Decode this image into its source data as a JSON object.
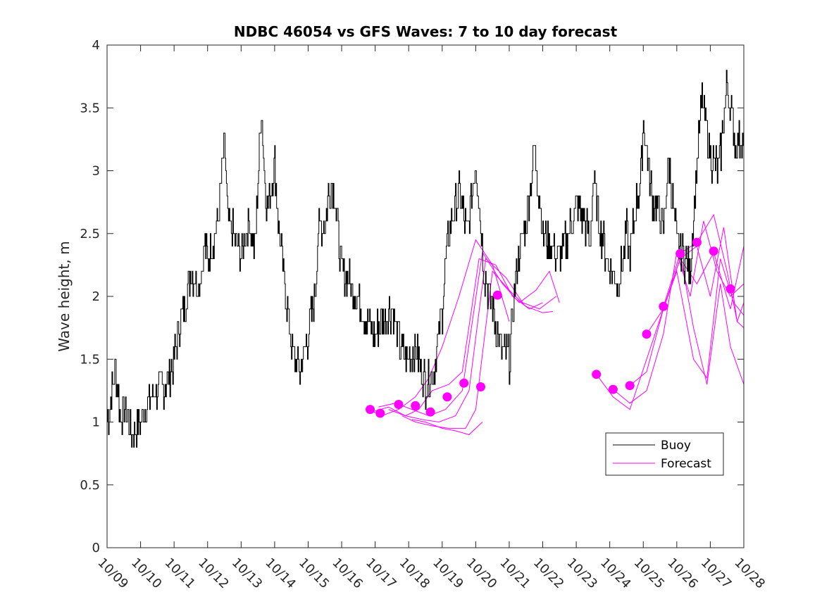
{
  "chart_data": {
    "type": "line",
    "title": "NDBC 46054 vs GFS Waves: 7 to 10 day forecast",
    "xlabel": "",
    "ylabel": "Wave height, m",
    "ylim": [
      0,
      4
    ],
    "xlim": [
      0,
      19
    ],
    "x_unit": "days since 10/09 00:00",
    "x_ticks": [
      "10/09",
      "10/10",
      "10/11",
      "10/12",
      "10/13",
      "10/14",
      "10/15",
      "10/16",
      "10/17",
      "10/18",
      "10/19",
      "10/20",
      "10/21",
      "10/22",
      "10/23",
      "10/24",
      "10/25",
      "10/26",
      "10/27",
      "10/28"
    ],
    "y_ticks": [
      "0",
      "0.5",
      "1",
      "1.5",
      "2",
      "2.5",
      "3",
      "3.5",
      "4"
    ],
    "legend": {
      "position": "bottom-right",
      "entries": [
        "Buoy",
        "Forecast"
      ]
    },
    "colors": {
      "buoy": "#000000",
      "forecast": "#ff00ff",
      "axis": "#262626"
    },
    "series": [
      {
        "name": "Buoy",
        "x": [
          0,
          0.25,
          0.4,
          0.55,
          0.75,
          1.0,
          1.25,
          1.5,
          1.75,
          2.0,
          2.1,
          2.3,
          2.5,
          2.75,
          2.9,
          3.0,
          3.1,
          3.3,
          3.5,
          3.6,
          3.75,
          3.9,
          4.0,
          4.1,
          4.25,
          4.4,
          4.6,
          4.75,
          4.9,
          5.0,
          5.1,
          5.3,
          5.5,
          5.75,
          5.9,
          6.0,
          6.2,
          6.3,
          6.5,
          6.6,
          6.75,
          7.0,
          7.25,
          7.5,
          7.75,
          8.0,
          8.25,
          8.5,
          8.75,
          9.0,
          9.2,
          9.4,
          9.5,
          9.75,
          10.0,
          10.1,
          10.25,
          10.5,
          10.75,
          11.0,
          11.25,
          11.5,
          11.75,
          12.0,
          12.25,
          12.5,
          12.75,
          13.0,
          13.25,
          13.5,
          13.75,
          14.0,
          14.25,
          14.4,
          14.5,
          14.75,
          15.0,
          15.25,
          15.5,
          15.6,
          15.75,
          15.9,
          16.0,
          16.25,
          16.5,
          16.6,
          16.75,
          17.0,
          17.25,
          17.4,
          17.5,
          17.75,
          18.0,
          18.25,
          18.5,
          18.75,
          19.0
        ],
        "y": [
          1.0,
          1.4,
          1.05,
          1.1,
          0.9,
          1.0,
          1.2,
          1.25,
          1.3,
          1.5,
          1.7,
          1.9,
          2.2,
          2.1,
          2.4,
          2.3,
          2.4,
          2.6,
          3.2,
          2.6,
          2.5,
          2.4,
          2.3,
          2.5,
          2.6,
          2.35,
          3.5,
          2.7,
          2.9,
          3.1,
          2.6,
          2.1,
          1.6,
          1.4,
          1.6,
          1.7,
          2.0,
          2.5,
          2.6,
          2.8,
          2.9,
          2.2,
          2.1,
          2.0,
          1.8,
          1.7,
          1.85,
          1.9,
          1.6,
          1.5,
          1.6,
          1.4,
          1.3,
          1.4,
          1.9,
          2.3,
          2.6,
          2.8,
          2.5,
          3.1,
          2.2,
          1.9,
          1.6,
          1.5,
          2.3,
          2.6,
          3.2,
          2.5,
          2.4,
          2.3,
          2.5,
          2.7,
          2.6,
          2.4,
          2.9,
          2.5,
          2.2,
          2.1,
          2.5,
          2.3,
          2.7,
          2.9,
          3.4,
          2.8,
          2.6,
          2.5,
          3.1,
          2.4,
          2.3,
          2.2,
          2.7,
          3.6,
          3.1,
          3.0,
          3.7,
          3.2,
          3.3
        ]
      },
      {
        "name": "Forecast",
        "runs": [
          {
            "x": [
              7.8,
              8.2,
              8.7,
              9.2,
              9.6,
              10.0,
              10.5,
              11.0,
              11.5,
              12.0
            ],
            "y": [
              1.1,
              1.05,
              1.1,
              1.2,
              1.35,
              1.6,
              2.0,
              2.45,
              2.25,
              1.8
            ]
          },
          {
            "x": [
              7.9,
              8.4,
              8.9,
              9.3,
              9.7,
              10.2,
              10.6,
              11.1,
              11.6,
              12.1,
              12.6,
              13.0
            ],
            "y": [
              1.08,
              1.12,
              1.05,
              1.1,
              1.25,
              1.3,
              1.4,
              2.3,
              2.25,
              2.0,
              1.9,
              1.95
            ]
          },
          {
            "x": [
              8.1,
              8.6,
              9.1,
              9.6,
              10.1,
              10.6,
              11.2,
              11.8,
              12.3,
              12.8,
              13.2,
              13.5
            ],
            "y": [
              1.12,
              1.15,
              1.1,
              1.05,
              1.1,
              1.25,
              2.35,
              2.1,
              1.95,
              2.05,
              2.2,
              1.95
            ]
          },
          {
            "x": [
              8.4,
              8.9,
              9.4,
              9.9,
              10.4,
              10.8,
              11.3,
              11.9,
              12.4,
              12.9,
              13.4
            ],
            "y": [
              1.1,
              1.05,
              1.02,
              1.0,
              1.05,
              1.25,
              2.3,
              2.15,
              1.95,
              1.9,
              2.0
            ]
          },
          {
            "x": [
              8.8,
              9.2,
              9.7,
              10.2,
              10.7,
              11.0,
              11.5,
              12.0,
              12.5,
              13.0,
              13.3
            ],
            "y": [
              1.05,
              1.0,
              0.97,
              0.95,
              0.95,
              1.1,
              2.2,
              2.05,
              1.92,
              1.87,
              1.88
            ]
          },
          {
            "x": [
              9.1,
              9.5,
              10.0,
              10.4,
              10.8,
              11.2
            ],
            "y": [
              1.02,
              1.0,
              0.95,
              0.93,
              0.9,
              1.0
            ]
          },
          {
            "x": [
              14.6,
              15.1,
              15.6,
              16.1,
              16.6,
              17.1,
              17.6,
              18.1,
              18.6,
              19.0
            ],
            "y": [
              1.38,
              1.2,
              1.1,
              1.5,
              1.9,
              2.3,
              2.1,
              2.35,
              1.9,
              2.4
            ]
          },
          {
            "x": [
              15.1,
              15.6,
              16.1,
              16.6,
              17.0,
              17.4,
              17.8,
              18.2,
              18.6,
              19.0
            ],
            "y": [
              1.26,
              1.15,
              1.25,
              1.7,
              2.35,
              2.0,
              2.6,
              2.2,
              2.0,
              2.1
            ]
          },
          {
            "x": [
              15.6,
              16.1,
              16.6,
              17.1,
              17.6,
              18.0,
              18.4,
              18.8,
              19.0
            ],
            "y": [
              1.29,
              1.4,
              1.9,
              2.3,
              2.4,
              2.0,
              2.55,
              1.8,
              1.75
            ]
          },
          {
            "x": [
              16.1,
              16.6,
              17.0,
              17.5,
              17.9,
              18.3,
              18.7,
              19.0
            ],
            "y": [
              1.7,
              1.9,
              2.2,
              1.5,
              1.35,
              2.3,
              1.95,
              1.85
            ]
          },
          {
            "x": [
              16.6,
              17.1,
              17.5,
              17.9,
              18.3,
              18.6,
              19.0
            ],
            "y": [
              1.92,
              2.34,
              1.75,
              1.3,
              2.1,
              1.6,
              1.3
            ]
          },
          {
            "x": [
              17.1,
              17.6,
              18.1,
              18.5,
              18.8,
              19.0
            ],
            "y": [
              2.34,
              2.43,
              2.65,
              2.2,
              1.8,
              1.95
            ]
          }
        ],
        "markers": {
          "x": [
            7.85,
            8.15,
            8.7,
            9.2,
            9.65,
            10.15,
            10.65,
            11.15,
            11.65,
            14.6,
            15.1,
            15.6,
            16.1,
            16.6,
            17.1,
            17.6,
            18.1,
            18.6
          ],
          "y": [
            1.1,
            1.07,
            1.14,
            1.13,
            1.08,
            1.2,
            1.31,
            1.28,
            2.01,
            1.38,
            1.26,
            1.29,
            1.7,
            1.92,
            2.34,
            2.43,
            2.36,
            2.06
          ]
        }
      }
    ]
  }
}
